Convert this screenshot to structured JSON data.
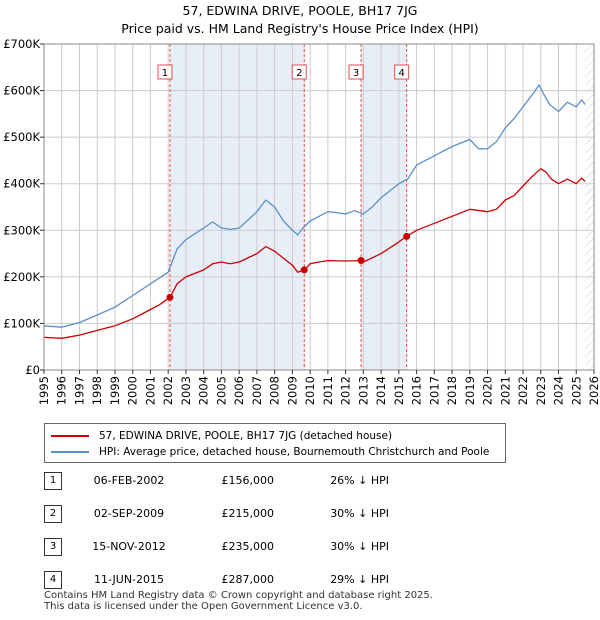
{
  "title_line1": "57, EDWINA DRIVE, POOLE, BH17 7JG",
  "title_line2": "Price paid vs. HM Land Registry's House Price Index (HPI)",
  "colors": {
    "property": "#cc0000",
    "hpi": "#5b8fc9",
    "shade": "#e8eef8",
    "marker_line": "#e05050",
    "grid": "#cccccc"
  },
  "chart_data": {
    "type": "line",
    "title": "Price paid vs. HM Land Registry's House Price Index (HPI)",
    "xlabel": "",
    "ylabel": "",
    "xlim": [
      1995,
      2026
    ],
    "ylim": [
      0,
      700000
    ],
    "y_ticks": [
      0,
      100000,
      200000,
      300000,
      400000,
      500000,
      600000,
      700000
    ],
    "y_tick_labels": [
      "£0",
      "£100K",
      "£200K",
      "£300K",
      "£400K",
      "£500K",
      "£600K",
      "£700K"
    ],
    "x_ticks": [
      1995,
      1996,
      1997,
      1998,
      1999,
      2000,
      2001,
      2002,
      2003,
      2004,
      2005,
      2006,
      2007,
      2008,
      2009,
      2010,
      2011,
      2012,
      2013,
      2014,
      2015,
      2016,
      2017,
      2018,
      2019,
      2020,
      2021,
      2022,
      2023,
      2024,
      2025,
      2026
    ],
    "x_tick_labels": [
      "1995",
      "1996",
      "1997",
      "1998",
      "1999",
      "2000",
      "2001",
      "2002",
      "2003",
      "2004",
      "2005",
      "2006",
      "2007",
      "2008",
      "2009",
      "2010",
      "2011",
      "2012",
      "2013",
      "2014",
      "2015",
      "2016",
      "2017",
      "2018",
      "2019",
      "2020",
      "2021",
      "2022",
      "2023",
      "2024",
      "2025",
      "2026"
    ],
    "grid": true,
    "shaded_spans": [
      [
        2002.1,
        2009.67
      ],
      [
        2012.87,
        2015.44
      ]
    ],
    "series": [
      {
        "name": "57, EDWINA DRIVE, POOLE, BH17 7JG (detached house)",
        "color": "#cc0000",
        "x": [
          1995.0,
          1996.0,
          1997.0,
          1998.0,
          1999.0,
          2000.0,
          2001.0,
          2001.5,
          2002.1,
          2002.5,
          2003.0,
          2004.0,
          2004.5,
          2005.0,
          2005.5,
          2006.0,
          2007.0,
          2007.5,
          2008.0,
          2008.5,
          2009.0,
          2009.3,
          2009.67,
          2010.0,
          2010.5,
          2011.0,
          2012.0,
          2012.87,
          2013.0,
          2014.0,
          2015.0,
          2015.44,
          2016.0,
          2017.0,
          2018.0,
          2019.0,
          2020.0,
          2020.5,
          2021.0,
          2021.5,
          2022.0,
          2022.5,
          2023.0,
          2023.3,
          2023.6,
          2024.0,
          2024.5,
          2025.0,
          2025.3,
          2025.5
        ],
        "y": [
          70000,
          68000,
          75000,
          85000,
          95000,
          110000,
          130000,
          140000,
          156000,
          185000,
          200000,
          215000,
          228000,
          232000,
          228000,
          232000,
          250000,
          265000,
          255000,
          240000,
          225000,
          210000,
          215000,
          228000,
          232000,
          235000,
          234000,
          235000,
          232000,
          250000,
          275000,
          287000,
          300000,
          315000,
          330000,
          345000,
          340000,
          345000,
          365000,
          375000,
          395000,
          415000,
          432000,
          425000,
          410000,
          400000,
          410000,
          400000,
          412000,
          405000
        ]
      },
      {
        "name": "HPI: Average price, detached house, Bournemouth Christchurch and Poole",
        "color": "#5b8fc9",
        "x": [
          1995.0,
          1996.0,
          1997.0,
          1998.0,
          1999.0,
          2000.0,
          2001.0,
          2002.0,
          2002.5,
          2003.0,
          2004.0,
          2004.5,
          2005.0,
          2005.5,
          2006.0,
          2007.0,
          2007.5,
          2008.0,
          2008.5,
          2009.0,
          2009.3,
          2009.6,
          2010.0,
          2010.5,
          2011.0,
          2011.5,
          2012.0,
          2012.5,
          2013.0,
          2013.5,
          2014.0,
          2015.0,
          2015.5,
          2016.0,
          2017.0,
          2018.0,
          2019.0,
          2019.5,
          2020.0,
          2020.5,
          2021.0,
          2021.5,
          2022.0,
          2022.5,
          2022.9,
          2023.2,
          2023.5,
          2024.0,
          2024.5,
          2025.0,
          2025.3,
          2025.5
        ],
        "y": [
          95000,
          92000,
          102000,
          118000,
          135000,
          160000,
          185000,
          210000,
          260000,
          280000,
          305000,
          318000,
          305000,
          302000,
          305000,
          340000,
          365000,
          350000,
          320000,
          300000,
          290000,
          305000,
          320000,
          330000,
          340000,
          338000,
          335000,
          342000,
          335000,
          350000,
          370000,
          400000,
          410000,
          440000,
          460000,
          480000,
          495000,
          475000,
          475000,
          490000,
          520000,
          540000,
          565000,
          590000,
          612000,
          590000,
          570000,
          555000,
          575000,
          565000,
          580000,
          570000
        ]
      }
    ],
    "sales": [
      {
        "num": "1",
        "x": 2002.1,
        "y": 156000
      },
      {
        "num": "2",
        "x": 2009.67,
        "y": 215000
      },
      {
        "num": "3",
        "x": 2012.87,
        "y": 235000
      },
      {
        "num": "4",
        "x": 2015.44,
        "y": 287000
      }
    ]
  },
  "legend": {
    "property_label": "57, EDWINA DRIVE, POOLE, BH17 7JG (detached house)",
    "hpi_label": "HPI: Average price, detached house, Bournemouth Christchurch and Poole"
  },
  "sales_table": [
    {
      "num": "1",
      "date": "06-FEB-2002",
      "price": "£156,000",
      "hpi": "26% ↓ HPI"
    },
    {
      "num": "2",
      "date": "02-SEP-2009",
      "price": "£215,000",
      "hpi": "30% ↓ HPI"
    },
    {
      "num": "3",
      "date": "15-NOV-2012",
      "price": "£235,000",
      "hpi": "30% ↓ HPI"
    },
    {
      "num": "4",
      "date": "11-JUN-2015",
      "price": "£287,000",
      "hpi": "29% ↓ HPI"
    }
  ],
  "footer": {
    "line1": "Contains HM Land Registry data © Crown copyright and database right 2025.",
    "line2": "This data is licensed under the Open Government Licence v3.0."
  }
}
